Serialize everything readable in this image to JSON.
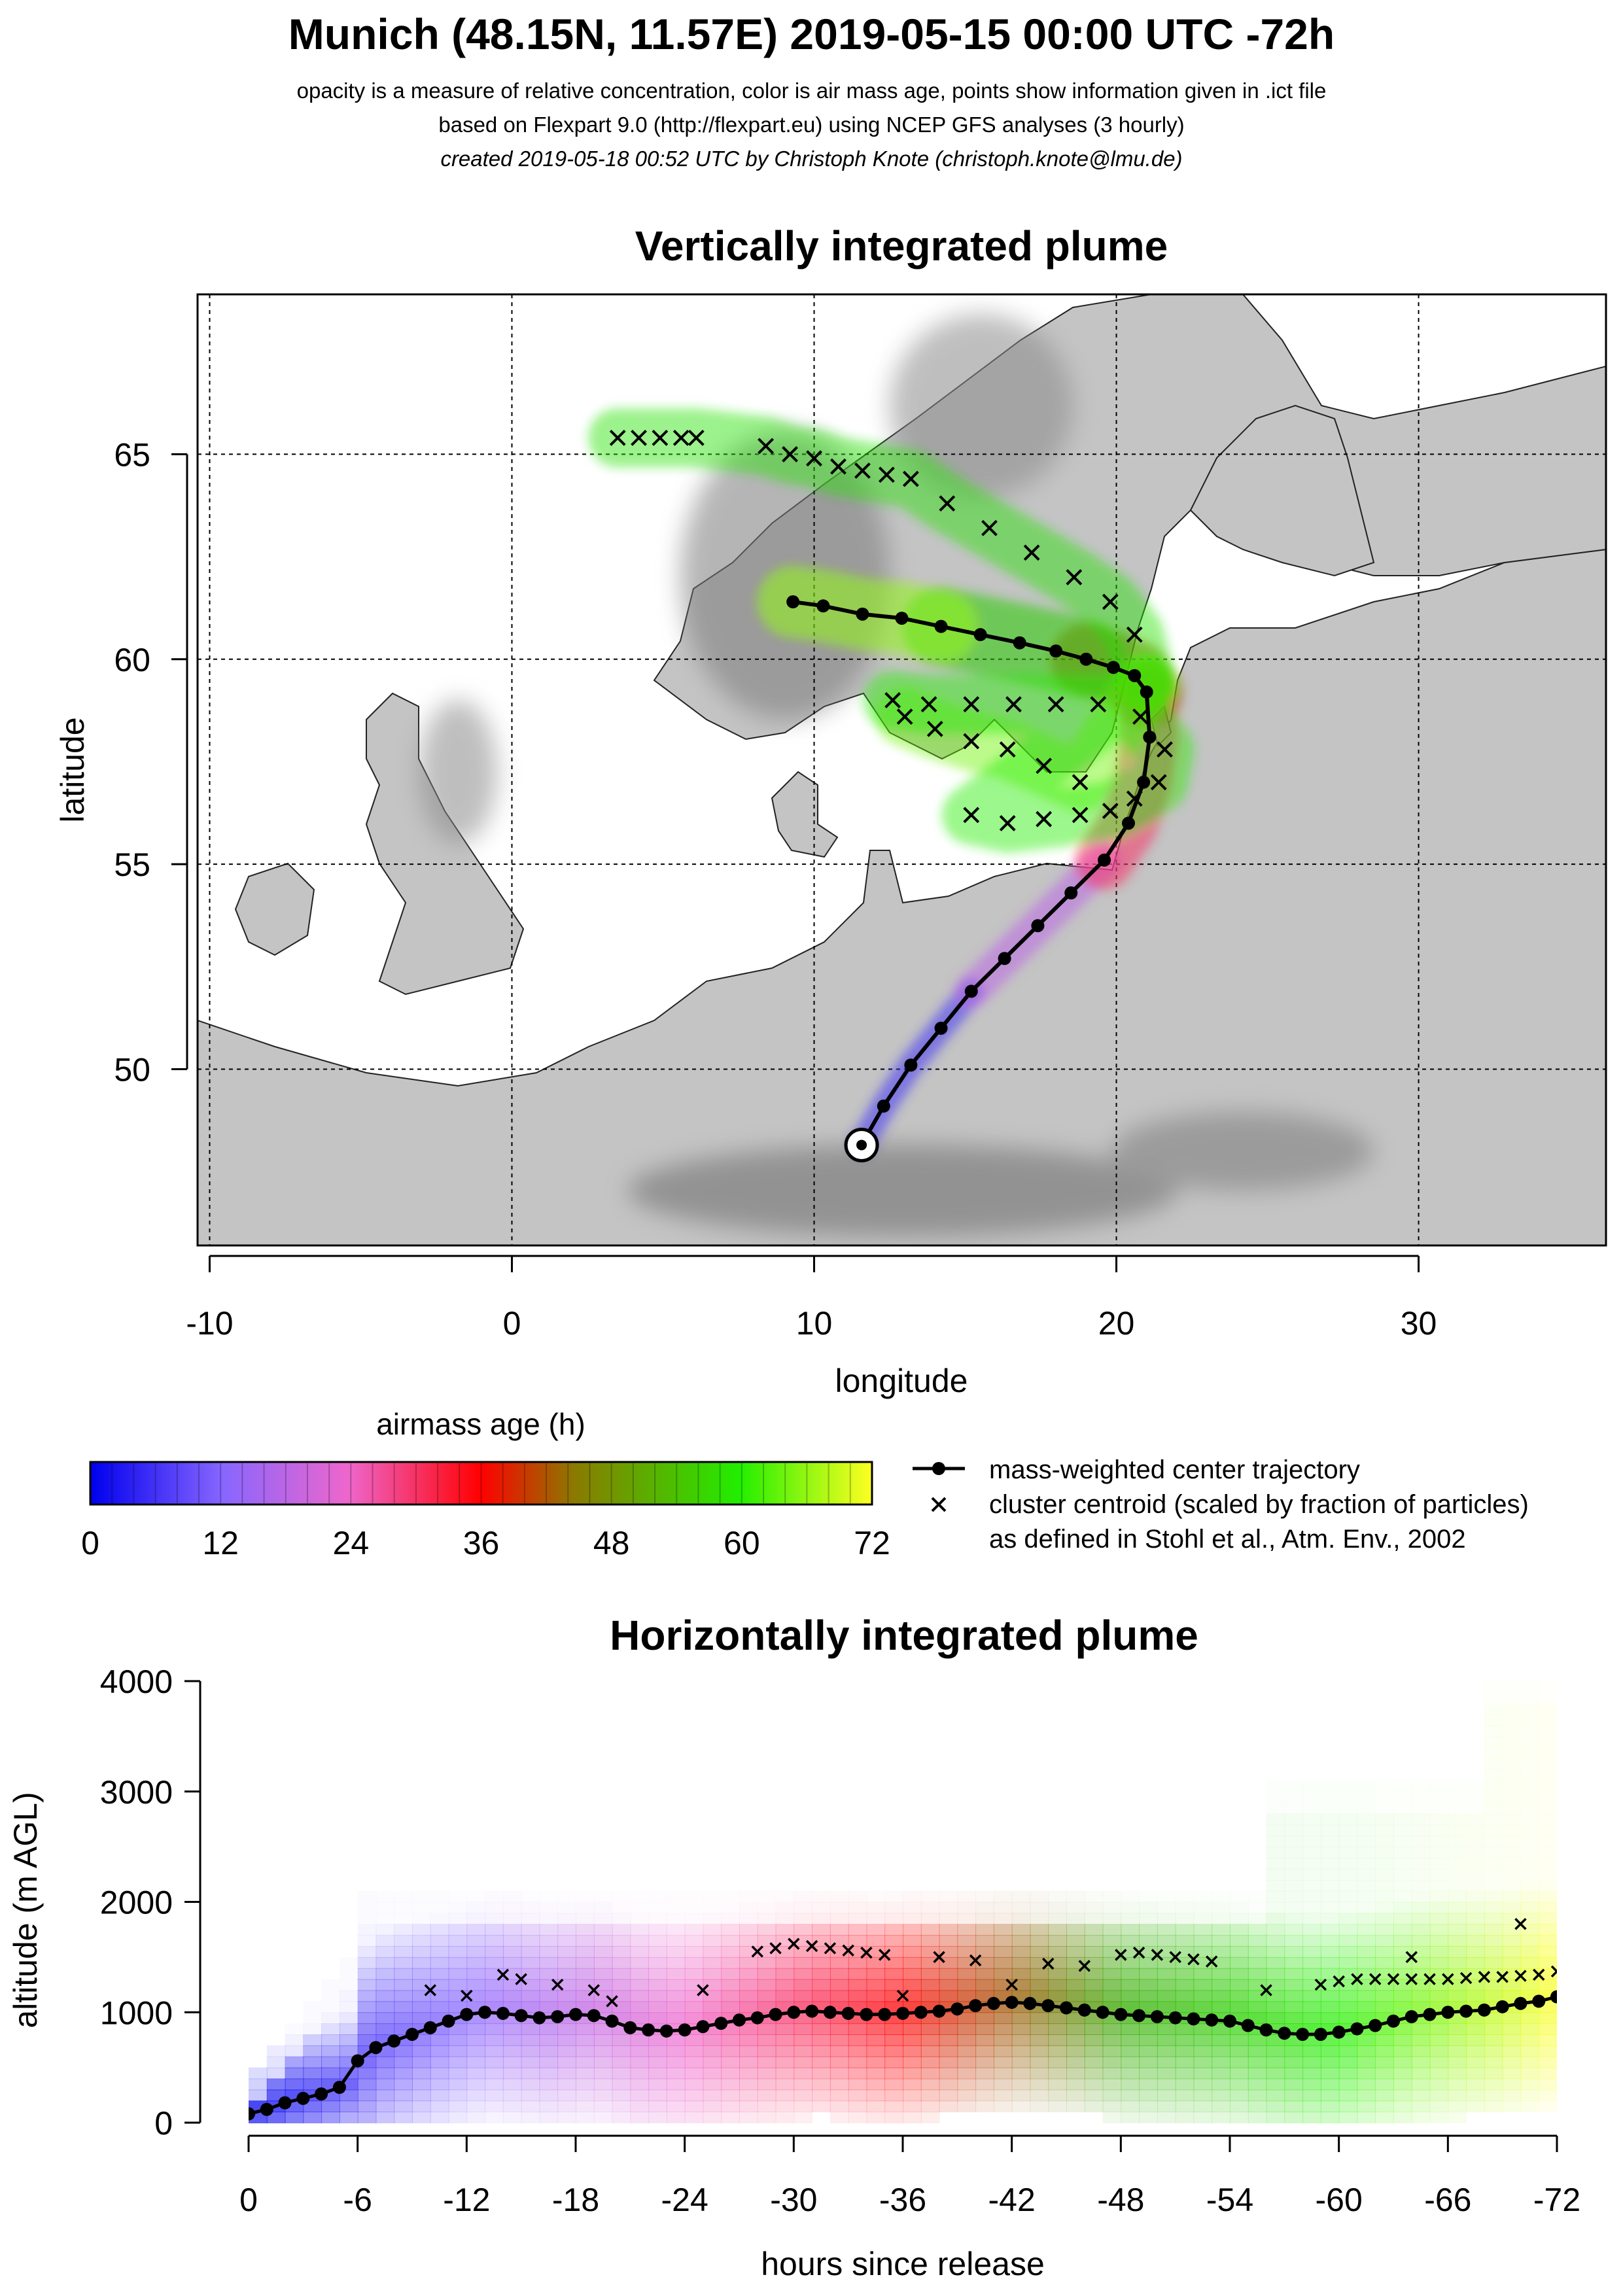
{
  "header": {
    "title": "Munich (48.15N, 11.57E) 2019-05-15 00:00 UTC -72h",
    "line1": "opacity is a measure of relative concentration, color is air mass age, points show information given in .ict file",
    "line2": "based on Flexpart 9.0 (http://flexpart.eu) using NCEP GFS analyses (3 hourly)",
    "line3": "created 2019-05-18 00:52 UTC by Christoph Knote (christoph.knote@lmu.de)"
  },
  "colors": {
    "age_0": "#0000ee",
    "age_12": "#8866ff",
    "age_24": "#ee66cc",
    "age_36": "#ff0000",
    "age_48": "#33aa00",
    "age_60": "#22ee00",
    "age_72": "#ffff22",
    "land": "#bdbdbd",
    "water": "#ffffff",
    "trajectory": "#000000"
  },
  "chart_data": [
    {
      "type": "line",
      "panel": "map",
      "title": "Vertically integrated plume",
      "xlabel": "longitude",
      "ylabel": "latitude",
      "xlim": [
        -10.4,
        36.2
      ],
      "ylim": [
        45.7,
        68.9
      ],
      "xticks": [
        -10,
        0,
        10,
        20,
        30
      ],
      "yticks": [
        50,
        55,
        60,
        65
      ],
      "xtick_labels": [
        "-10",
        "0",
        "10",
        "20",
        "30"
      ],
      "ytick_labels": [
        "50",
        "55",
        "60",
        "65"
      ],
      "grid": true,
      "release_point": {
        "lon": 11.57,
        "lat": 48.15
      },
      "series": [
        {
          "name": "mass-weighted center trajectory",
          "lon": [
            11.6,
            12.3,
            13.2,
            14.2,
            15.2,
            16.3,
            17.4,
            18.5,
            19.6,
            20.4,
            20.9,
            21.1,
            21.0,
            20.6,
            19.9,
            19.0,
            18.0,
            16.8,
            15.5,
            14.2,
            12.9,
            11.6,
            10.3,
            9.3
          ],
          "lat": [
            48.2,
            49.1,
            50.1,
            51.0,
            51.9,
            52.7,
            53.5,
            54.3,
            55.1,
            56.0,
            57.0,
            58.1,
            59.2,
            59.6,
            59.8,
            60.0,
            60.2,
            60.4,
            60.6,
            60.8,
            61.0,
            61.1,
            61.3,
            61.4
          ]
        }
      ],
      "centroids": {
        "name": "cluster centroid (scaled by fraction of particles)",
        "lon": [
          3.5,
          4.2,
          4.9,
          5.6,
          6.1,
          8.4,
          9.2,
          10.0,
          10.8,
          11.6,
          12.4,
          13.2,
          14.4,
          15.8,
          17.2,
          18.6,
          19.8,
          20.6,
          13.0,
          14.0,
          15.2,
          16.4,
          17.6,
          18.8,
          12.6,
          13.8,
          15.2,
          16.6,
          18.0,
          19.4,
          20.8,
          21.6,
          21.4,
          20.6,
          19.8,
          18.8,
          17.6,
          16.4,
          15.2
        ],
        "lat": [
          65.4,
          65.4,
          65.4,
          65.4,
          65.4,
          65.2,
          65.0,
          64.9,
          64.7,
          64.6,
          64.5,
          64.4,
          63.8,
          63.2,
          62.6,
          62.0,
          61.4,
          60.6,
          58.6,
          58.3,
          58.0,
          57.8,
          57.4,
          57.0,
          59.0,
          58.9,
          58.9,
          58.9,
          58.9,
          58.9,
          58.6,
          57.8,
          57.0,
          56.6,
          56.3,
          56.2,
          56.1,
          56.0,
          56.2
        ]
      }
    },
    {
      "type": "line",
      "panel": "profile",
      "title": "Horizontally integrated plume",
      "xlabel": "hours since release",
      "ylabel": "altitude (m AGL)",
      "xlim": [
        0,
        -72
      ],
      "ylim": [
        0,
        4000
      ],
      "xticks": [
        0,
        -6,
        -12,
        -18,
        -24,
        -30,
        -36,
        -42,
        -48,
        -54,
        -60,
        -66,
        -72
      ],
      "xtick_labels": [
        "0",
        "-6",
        "-12",
        "-18",
        "-24",
        "-30",
        "-36",
        "-42",
        "-48",
        "-54",
        "-60",
        "-66",
        "-72"
      ],
      "yticks": [
        0,
        1000,
        2000,
        3000,
        4000
      ],
      "ytick_labels": [
        "0",
        "1000",
        "2000",
        "3000",
        "4000"
      ],
      "series": [
        {
          "name": "mass-weighted center trajectory",
          "x": [
            0,
            -1,
            -2,
            -3,
            -4,
            -5,
            -6,
            -7,
            -8,
            -9,
            -10,
            -11,
            -12,
            -13,
            -14,
            -15,
            -16,
            -17,
            -18,
            -19,
            -20,
            -21,
            -22,
            -23,
            -24,
            -25,
            -26,
            -27,
            -28,
            -29,
            -30,
            -31,
            -32,
            -33,
            -34,
            -35,
            -36,
            -37,
            -38,
            -39,
            -40,
            -41,
            -42,
            -43,
            -44,
            -45,
            -46,
            -47,
            -48,
            -49,
            -50,
            -51,
            -52,
            -53,
            -54,
            -55,
            -56,
            -57,
            -58,
            -59,
            -60,
            -61,
            -62,
            -63,
            -64,
            -65,
            -66,
            -67,
            -68,
            -69,
            -70,
            -71,
            -72
          ],
          "y": [
            80,
            120,
            180,
            220,
            260,
            320,
            560,
            680,
            740,
            800,
            860,
            920,
            980,
            1000,
            990,
            970,
            950,
            960,
            980,
            970,
            920,
            860,
            840,
            830,
            840,
            870,
            900,
            930,
            950,
            980,
            1000,
            1010,
            1000,
            990,
            980,
            980,
            990,
            1000,
            1010,
            1030,
            1060,
            1080,
            1090,
            1080,
            1060,
            1040,
            1020,
            1000,
            980,
            970,
            960,
            950,
            940,
            930,
            920,
            880,
            840,
            810,
            800,
            800,
            820,
            850,
            880,
            920,
            960,
            980,
            1000,
            1010,
            1020,
            1050,
            1080,
            1100,
            1140
          ]
        }
      ],
      "centroids": {
        "x": [
          -28,
          -29,
          -30,
          -31,
          -32,
          -33,
          -34,
          -35,
          -14,
          -15,
          -17,
          -19,
          -38,
          -40,
          -44,
          -46,
          -48,
          -49,
          -50,
          -51,
          -52,
          -53,
          -59,
          -60,
          -61,
          -62,
          -63,
          -64,
          -65,
          -66,
          -67,
          -68,
          -69,
          -70,
          -71,
          -72,
          -10,
          -12,
          -20,
          -25,
          -36,
          -42,
          -56,
          -64,
          -70
        ],
        "y": [
          1550,
          1580,
          1620,
          1600,
          1580,
          1560,
          1540,
          1520,
          1340,
          1300,
          1250,
          1200,
          1500,
          1470,
          1440,
          1420,
          1520,
          1540,
          1520,
          1500,
          1480,
          1460,
          1250,
          1280,
          1300,
          1300,
          1300,
          1300,
          1300,
          1300,
          1310,
          1320,
          1320,
          1330,
          1340,
          1370,
          1200,
          1150,
          1100,
          1200,
          1150,
          1250,
          1200,
          1500,
          1800
        ]
      }
    }
  ],
  "colorbar": {
    "title": "airmass age (h)",
    "ticks": [
      "0",
      "12",
      "24",
      "36",
      "48",
      "60",
      "72"
    ]
  },
  "legend": {
    "trajectory": "mass-weighted center trajectory",
    "centroid": "cluster centroid (scaled by fraction of particles)",
    "reference": "as defined in Stohl et al., Atm. Env., 2002"
  }
}
